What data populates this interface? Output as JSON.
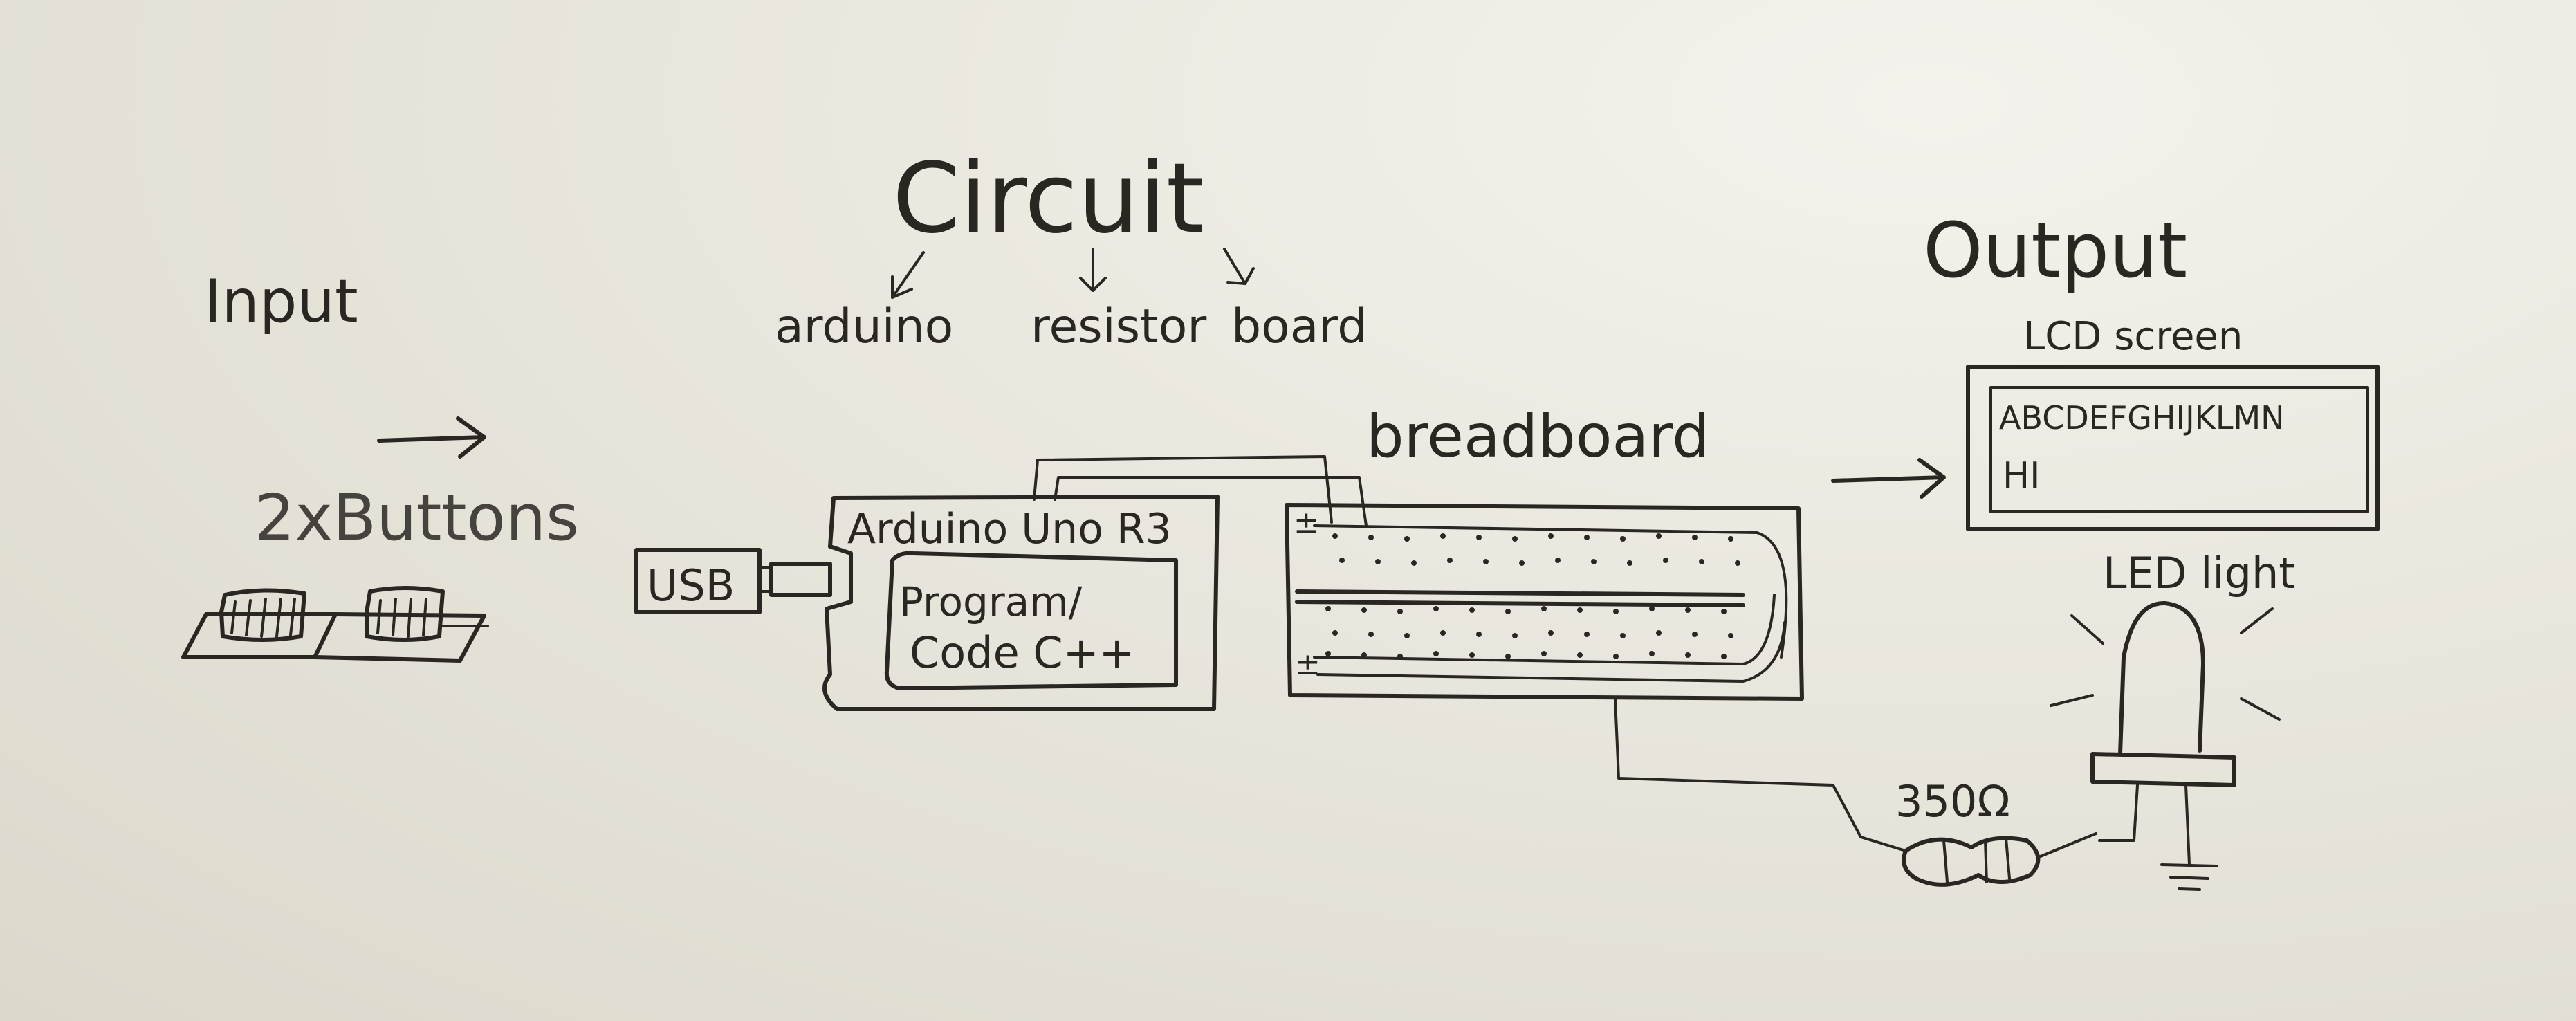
{
  "title": "Circuit",
  "circuit_parts": {
    "arduino": "arduino",
    "resistor": "resistor",
    "board": "board"
  },
  "input": {
    "heading": "Input",
    "buttons_label": "2xButtons"
  },
  "usb_label": "USB",
  "arduino_board": {
    "title": "Arduino Uno R3",
    "program_line1": "Program/",
    "program_line2": "Code C++"
  },
  "breadboard_label": "breadboard",
  "breadboard_rail_sign_top": "±",
  "breadboard_rail_sign_bottom": "±",
  "output": {
    "heading": "Output",
    "lcd_label": "LCD screen",
    "lcd_line1": "ABCDEFGHIJKLMN",
    "lcd_line2": "HI",
    "led_label": "LED light"
  },
  "resistor_value": "350Ω",
  "colors": {
    "ink": "#2a2622",
    "board": "#e9e6dd"
  }
}
